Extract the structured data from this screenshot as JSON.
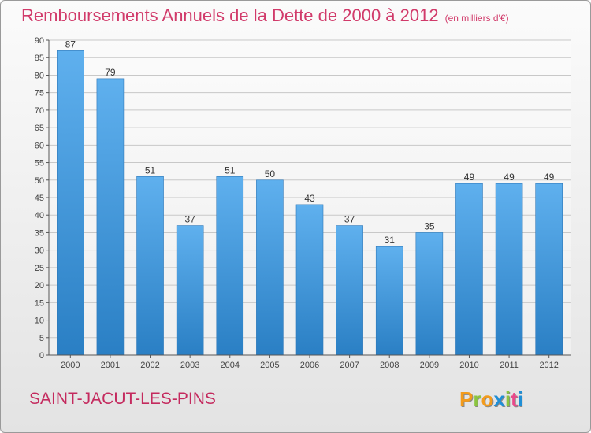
{
  "chart_data": {
    "type": "bar",
    "title": "Remboursements Annuels de la Dette de 2000 à 2012",
    "subtitle": "(en milliers d'€)",
    "categories": [
      "2000",
      "2001",
      "2002",
      "2003",
      "2004",
      "2005",
      "2006",
      "2007",
      "2008",
      "2009",
      "2010",
      "2011",
      "2012"
    ],
    "values": [
      87,
      79,
      51,
      37,
      51,
      50,
      43,
      37,
      31,
      35,
      49,
      49,
      49
    ],
    "xlabel": "",
    "ylabel": "",
    "ylim": [
      0,
      90
    ],
    "yticks": [
      0,
      5,
      10,
      15,
      20,
      25,
      30,
      35,
      40,
      45,
      50,
      55,
      60,
      65,
      70,
      75,
      80,
      85,
      90
    ],
    "grid": true,
    "bar_color": "#4c9fe0"
  },
  "footer": {
    "town": "SAINT-JACUT-LES-PINS",
    "logo": "Proxiti"
  },
  "logo_colors": [
    "#f39b1c",
    "#8bc53f",
    "#f39b1c",
    "#1f8fd6",
    "#8bc53f",
    "#e84a8a",
    "#1f8fd6"
  ]
}
